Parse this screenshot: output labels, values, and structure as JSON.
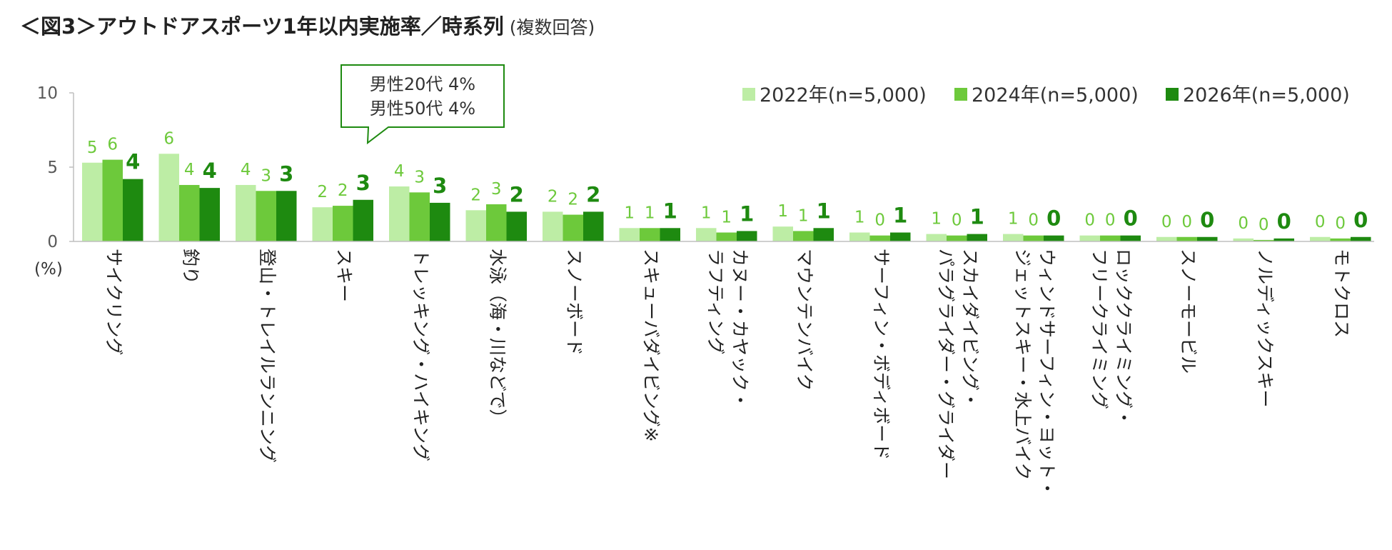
{
  "title": "＜図3＞アウトドアスポーツ1年以内実施率／時系列",
  "subtitle": "(複数回答)",
  "colors": {
    "2022": "#bdeda5",
    "2024": "#6dc93b",
    "2026": "#1e8a10",
    "axis": "#bfbfbf",
    "text": "#595959"
  },
  "callout": {
    "lines": [
      "男性20代 4%",
      "男性50代 4%"
    ]
  },
  "chart_data": {
    "type": "bar",
    "ylabel": "(%)",
    "ylim": [
      0,
      10
    ],
    "yticks": [
      0,
      5,
      10
    ],
    "legend_position": "top-right",
    "categories": [
      "サイクリング",
      "釣り",
      "登山・トレイルランニング",
      "スキー",
      "トレッキング・ハイキング",
      "水泳（海・川など）",
      "スノーボード",
      "スキューバダイビング※",
      "カヌー・カヤック・ラフティング",
      "マウンテンバイク",
      "サーフィン・ボディボード",
      "スカイダイビング・パラグライダー・グライダー",
      "ウィンドサーフィン・ヨット・ジェットスキー・水上バイク",
      "ロッククライミング・フリークライミング",
      "スノーモービル",
      "ノルディックスキー",
      "モトクロス"
    ],
    "category_lines": [
      [
        "サイクリング"
      ],
      [
        "釣り"
      ],
      [
        "登山・トレイルランニング"
      ],
      [
        "スキー"
      ],
      [
        "トレッキング・ハイキング"
      ],
      [
        "水泳（海・川などで）"
      ],
      [
        "スノーボード"
      ],
      [
        "スキューバダイビング※"
      ],
      [
        "カヌー・カヤック・",
        "ラフティング"
      ],
      [
        "マウンテンバイク"
      ],
      [
        "サーフィン・ボディボード"
      ],
      [
        "スカイダイビング・",
        "パラグライダー・グライダー"
      ],
      [
        "ウィンドサーフィン・ヨット・",
        "ジェットスキー・水上バイク"
      ],
      [
        "ロッククライミング・",
        "フリークライミング"
      ],
      [
        "スノーモービル"
      ],
      [
        "ノルディックスキー"
      ],
      [
        "モトクロス"
      ]
    ],
    "series": [
      {
        "name": "2022年(n=5,000)",
        "values": [
          5.3,
          5.9,
          3.8,
          2.3,
          3.7,
          2.1,
          2.0,
          0.9,
          0.9,
          1.0,
          0.6,
          0.5,
          0.5,
          0.4,
          0.3,
          0.2,
          0.3
        ],
        "labels": [
          "5",
          "6",
          "4",
          "2",
          "4",
          "2",
          "2",
          "1",
          "1",
          "1",
          "1",
          "1",
          "1",
          "0",
          "0",
          "0",
          "0"
        ]
      },
      {
        "name": "2024年(n=5,000)",
        "values": [
          5.5,
          3.8,
          3.4,
          2.4,
          3.3,
          2.5,
          1.8,
          0.9,
          0.6,
          0.7,
          0.4,
          0.4,
          0.4,
          0.4,
          0.3,
          0.1,
          0.2
        ],
        "labels": [
          "6",
          "4",
          "3",
          "2",
          "3",
          "3",
          "2",
          "1",
          "1",
          "1",
          "0",
          "0",
          "0",
          "0",
          "0",
          "0",
          "0"
        ]
      },
      {
        "name": "2026年(n=5,000)",
        "values": [
          4.2,
          3.6,
          3.4,
          2.8,
          2.6,
          2.0,
          2.0,
          0.9,
          0.7,
          0.9,
          0.6,
          0.5,
          0.4,
          0.4,
          0.3,
          0.2,
          0.3
        ],
        "labels": [
          "4",
          "4",
          "3",
          "3",
          "3",
          "2",
          "2",
          "1",
          "1",
          "1",
          "1",
          "1",
          "0",
          "0",
          "0",
          "0",
          "0"
        ]
      }
    ]
  }
}
